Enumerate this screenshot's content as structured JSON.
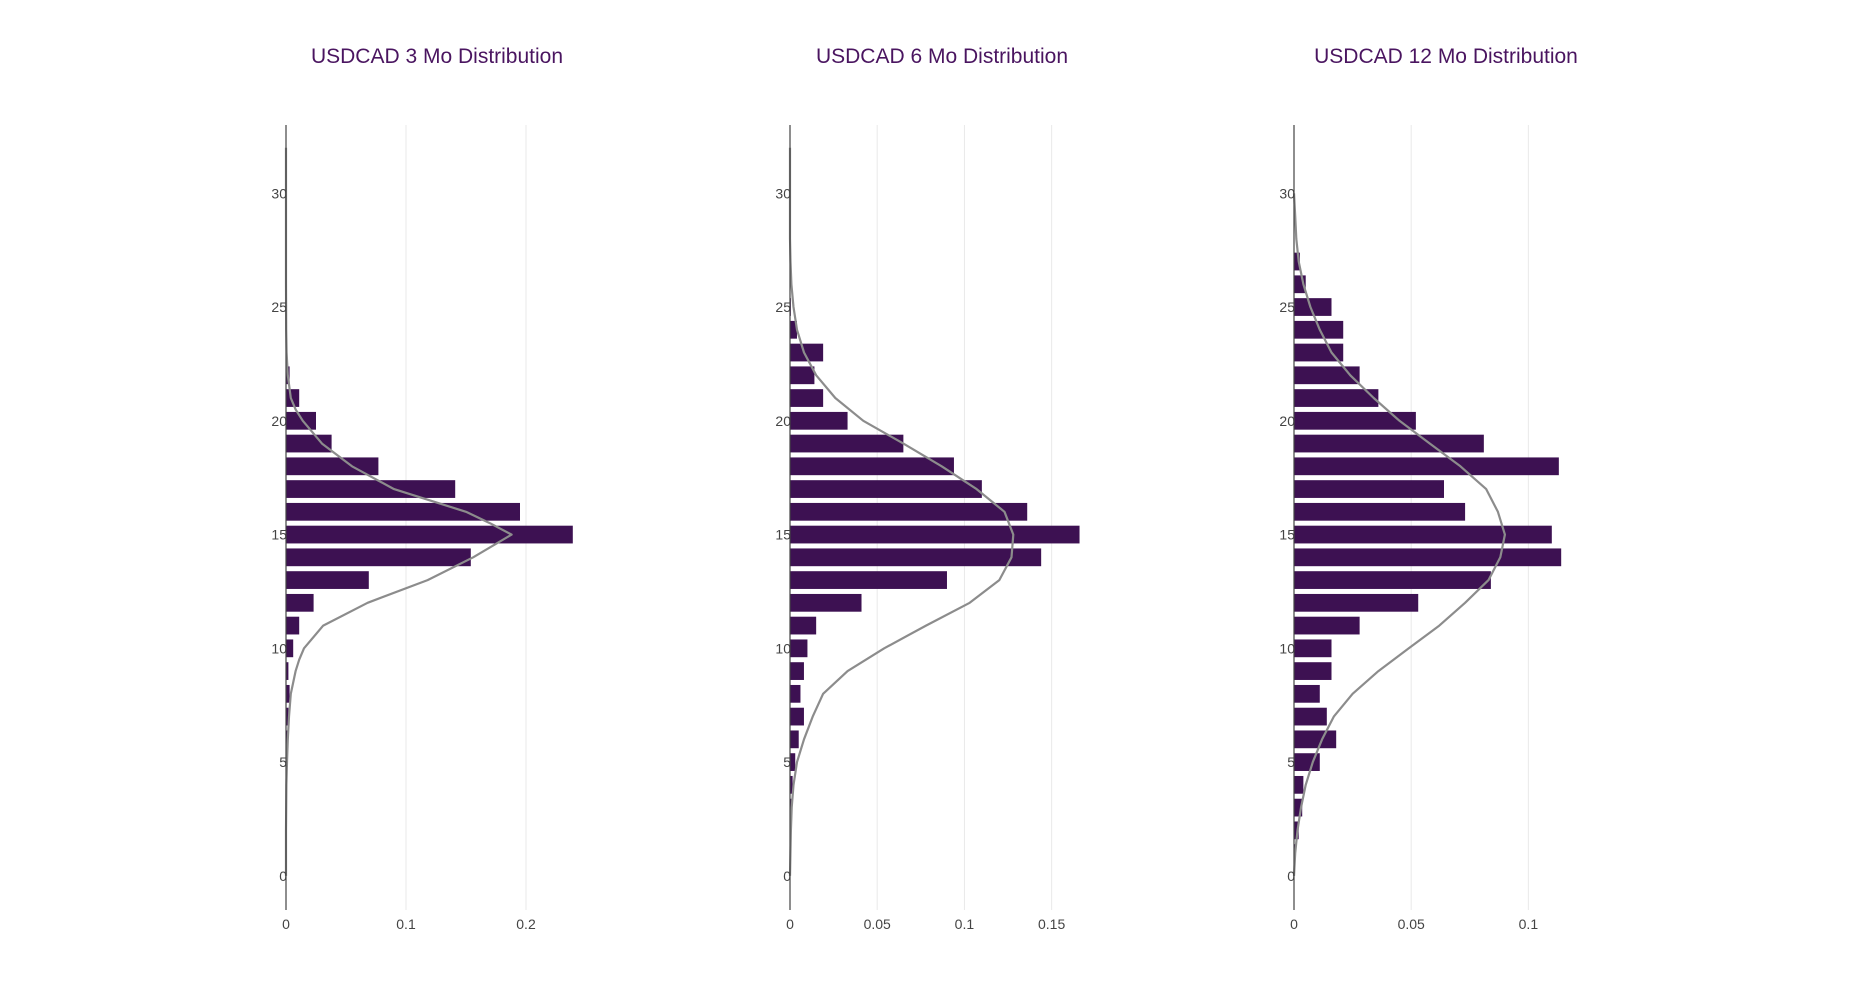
{
  "colors": {
    "bar": "#3d1152",
    "curve": "#8c8c8c",
    "title": "#4a1560",
    "axis": "#444444",
    "grid": "#e9e9e9",
    "tick_text": "#444444"
  },
  "chart_data": [
    {
      "type": "bar",
      "orientation": "horizontal",
      "title": "USDCAD 3 Mo Distribution",
      "xlim": [
        0,
        0.25
      ],
      "ylim": [
        -1.5,
        33
      ],
      "xticks": [
        0,
        0.1,
        0.2
      ],
      "xtick_labels": [
        "0",
        "0.1",
        "0.2"
      ],
      "yticks": [
        0,
        5,
        10,
        15,
        20,
        25,
        30
      ],
      "ytick_labels": [
        "0",
        "5",
        "10",
        "15",
        "20",
        "25",
        "30"
      ],
      "grid": true,
      "bins": [
        4,
        5,
        6,
        7,
        8,
        9,
        10,
        11,
        12,
        13,
        14,
        15,
        16,
        17,
        18,
        19,
        20,
        21,
        22,
        23
      ],
      "values": [
        0.0005,
        0.001,
        0.0015,
        0.002,
        0.003,
        0.002,
        0.006,
        0.011,
        0.023,
        0.069,
        0.154,
        0.239,
        0.195,
        0.141,
        0.077,
        0.038,
        0.025,
        0.011,
        0.003,
        0.0005
      ],
      "curve": {
        "y": [
          0,
          2,
          4,
          5,
          6,
          7,
          8,
          8.5,
          9,
          9.5,
          10,
          11,
          12,
          13,
          14,
          15,
          15.5,
          16,
          16.5,
          17,
          18,
          19,
          20,
          20.5,
          21,
          22,
          23,
          24,
          26,
          28,
          30,
          32
        ],
        "x": [
          0,
          0,
          0.0003,
          0.0008,
          0.0015,
          0.0025,
          0.004,
          0.006,
          0.008,
          0.011,
          0.015,
          0.031,
          0.068,
          0.118,
          0.156,
          0.188,
          0.17,
          0.15,
          0.12,
          0.09,
          0.055,
          0.03,
          0.014,
          0.008,
          0.004,
          0.0015,
          0.0005,
          0.0002,
          0,
          0,
          0,
          0
        ]
      }
    },
    {
      "type": "bar",
      "orientation": "horizontal",
      "title": "USDCAD 6 Mo Distribution",
      "xlim": [
        0,
        0.172
      ],
      "ylim": [
        -1.5,
        33
      ],
      "xticks": [
        0,
        0.05,
        0.1,
        0.15
      ],
      "xtick_labels": [
        "0",
        "0.05",
        "0.1",
        "0.15"
      ],
      "yticks": [
        0,
        5,
        10,
        15,
        20,
        25,
        30
      ],
      "ytick_labels": [
        "0",
        "5",
        "10",
        "15",
        "20",
        "25",
        "30"
      ],
      "grid": true,
      "bins": [
        2,
        3,
        4,
        5,
        6,
        7,
        8,
        9,
        10,
        11,
        12,
        13,
        14,
        15,
        16,
        17,
        18,
        19,
        20,
        21,
        22,
        23,
        24,
        25
      ],
      "values": [
        0.0005,
        0.0008,
        0.0015,
        0.003,
        0.005,
        0.008,
        0.006,
        0.008,
        0.01,
        0.015,
        0.041,
        0.09,
        0.144,
        0.166,
        0.136,
        0.11,
        0.094,
        0.065,
        0.033,
        0.019,
        0.014,
        0.019,
        0.004,
        0.0005
      ],
      "curve": {
        "y": [
          0,
          2,
          3,
          4,
          5,
          6,
          7,
          8,
          9,
          10,
          11,
          12,
          13,
          14,
          15,
          16,
          17,
          18,
          19,
          20,
          21,
          22,
          23,
          24,
          25,
          26,
          27,
          28,
          30,
          32
        ],
        "x": [
          0,
          0.0005,
          0.001,
          0.002,
          0.004,
          0.008,
          0.013,
          0.019,
          0.033,
          0.054,
          0.078,
          0.103,
          0.12,
          0.127,
          0.128,
          0.123,
          0.107,
          0.087,
          0.065,
          0.042,
          0.026,
          0.015,
          0.008,
          0.004,
          0.002,
          0.0008,
          0.0003,
          0,
          0,
          0
        ]
      }
    },
    {
      "type": "bar",
      "orientation": "horizontal",
      "title": "USDCAD 12 Mo Distribution",
      "xlim": [
        0,
        0.128
      ],
      "ylim": [
        -1.5,
        33
      ],
      "xticks": [
        0,
        0.05,
        0.1
      ],
      "xtick_labels": [
        "0",
        "0.05",
        "0.1"
      ],
      "yticks": [
        0,
        5,
        10,
        15,
        20,
        25,
        30
      ],
      "ytick_labels": [
        "0",
        "5",
        "10",
        "15",
        "20",
        "25",
        "30"
      ],
      "grid": true,
      "bins": [
        1,
        2,
        3,
        4,
        5,
        6,
        7,
        8,
        9,
        10,
        11,
        12,
        13,
        14,
        15,
        16,
        17,
        18,
        19,
        20,
        21,
        22,
        23,
        24,
        25,
        26,
        27
      ],
      "values": [
        0.0005,
        0.002,
        0.0035,
        0.004,
        0.011,
        0.018,
        0.014,
        0.011,
        0.016,
        0.016,
        0.028,
        0.053,
        0.084,
        0.114,
        0.11,
        0.073,
        0.064,
        0.113,
        0.081,
        0.052,
        0.036,
        0.028,
        0.021,
        0.021,
        0.016,
        0.005,
        0.0025
      ],
      "curve": {
        "y": [
          0,
          1,
          2,
          3,
          4,
          5,
          6,
          7,
          8,
          9,
          10,
          11,
          12,
          13,
          14,
          15,
          16,
          17,
          18,
          19,
          20,
          21,
          22,
          23,
          24,
          25,
          26,
          27,
          28,
          29,
          30
        ],
        "x": [
          0,
          0.0005,
          0.0015,
          0.003,
          0.005,
          0.008,
          0.012,
          0.017,
          0.025,
          0.036,
          0.049,
          0.062,
          0.073,
          0.083,
          0.088,
          0.09,
          0.087,
          0.082,
          0.071,
          0.058,
          0.045,
          0.034,
          0.024,
          0.016,
          0.011,
          0.007,
          0.004,
          0.002,
          0.001,
          0.0005,
          0
        ]
      }
    }
  ]
}
